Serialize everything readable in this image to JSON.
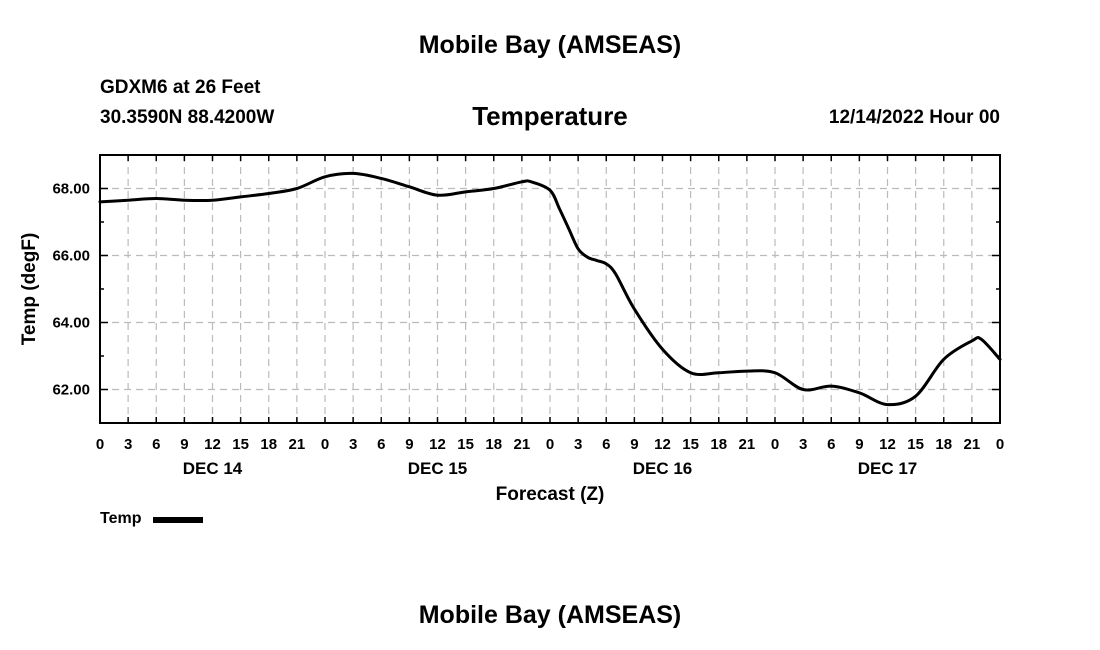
{
  "header": {
    "page_title": "Mobile Bay (AMSEAS)",
    "station": "GDXM6 at 26 Feet",
    "coordinates": "30.3590N  88.4200W",
    "chart_title": "Temperature",
    "run_time": "12/14/2022 Hour 00"
  },
  "footer": {
    "page_title": "Mobile Bay (AMSEAS)"
  },
  "legend": {
    "label": "Temp"
  },
  "colors": {
    "line": "#000000",
    "grid": "#bbbbbb",
    "background": "#ffffff"
  },
  "chart_data": {
    "type": "line",
    "title": "Temperature",
    "xlabel": "Forecast (Z)",
    "ylabel": "Temp (degF)",
    "xlim": [
      0,
      96
    ],
    "ylim": [
      61.0,
      69.0
    ],
    "grid": true,
    "legend_position": "bottom-left",
    "x_ticks": [
      0,
      3,
      6,
      9,
      12,
      15,
      18,
      21,
      24,
      27,
      30,
      33,
      36,
      39,
      42,
      45,
      48,
      51,
      54,
      57,
      60,
      63,
      66,
      69,
      72,
      75,
      78,
      81,
      84,
      87,
      90,
      93,
      96
    ],
    "x_tick_labels": [
      "0",
      "3",
      "6",
      "9",
      "12",
      "15",
      "18",
      "21",
      "0",
      "3",
      "6",
      "9",
      "12",
      "15",
      "18",
      "21",
      "0",
      "3",
      "6",
      "9",
      "12",
      "15",
      "18",
      "21",
      "0",
      "3",
      "6",
      "9",
      "12",
      "15",
      "18",
      "21",
      "0"
    ],
    "day_labels": [
      {
        "hour": 12,
        "label": "DEC 14"
      },
      {
        "hour": 36,
        "label": "DEC 15"
      },
      {
        "hour": 60,
        "label": "DEC 16"
      },
      {
        "hour": 84,
        "label": "DEC 17"
      }
    ],
    "y_ticks": [
      62,
      64,
      66,
      68
    ],
    "y_tick_labels": [
      "62.00",
      "64.00",
      "66.00",
      "68.00"
    ],
    "y_minor_ticks": [
      61,
      63,
      65,
      67,
      69
    ],
    "series": [
      {
        "name": "Temp",
        "x": [
          0,
          3,
          6,
          9,
          12,
          15,
          18,
          21,
          24,
          27,
          30,
          33,
          36,
          39,
          42,
          45,
          46,
          48,
          49,
          50,
          51,
          52,
          53,
          54,
          55,
          57,
          60,
          63,
          66,
          69,
          72,
          75,
          78,
          81,
          84,
          87,
          90,
          93,
          94,
          96
        ],
        "y": [
          67.6,
          67.65,
          67.7,
          67.65,
          67.65,
          67.75,
          67.85,
          68.0,
          68.35,
          68.45,
          68.3,
          68.05,
          67.8,
          67.9,
          68.0,
          68.2,
          68.2,
          67.95,
          67.4,
          66.8,
          66.2,
          65.95,
          65.85,
          65.75,
          65.45,
          64.4,
          63.2,
          62.5,
          62.5,
          62.55,
          62.5,
          62.0,
          62.1,
          61.9,
          61.55,
          61.8,
          62.9,
          63.45,
          63.5,
          62.9
        ]
      }
    ]
  }
}
